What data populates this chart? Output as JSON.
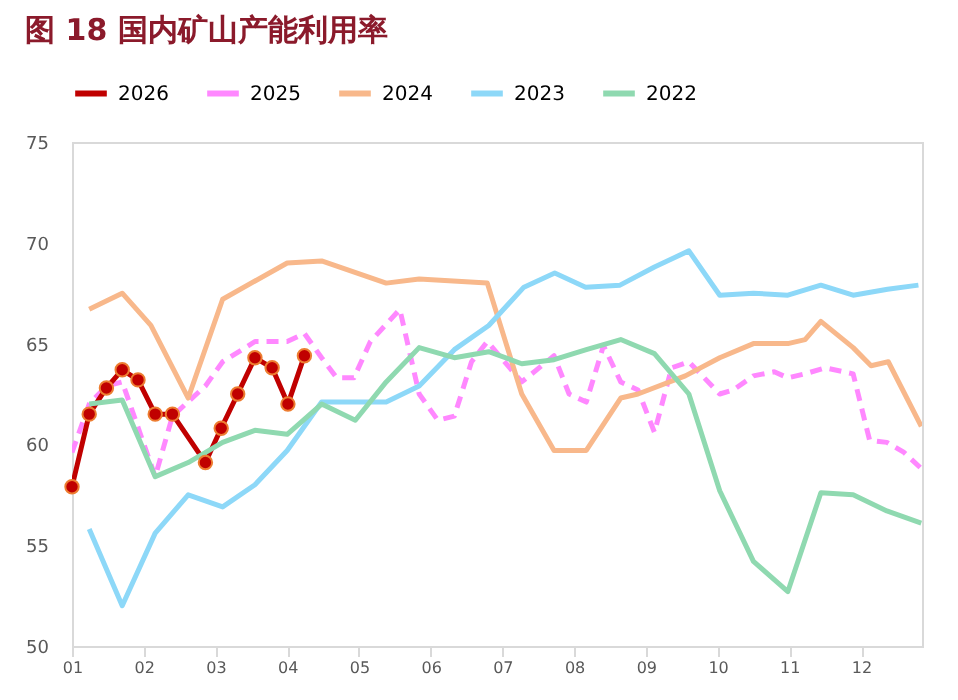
{
  "chart_data": {
    "type": "line",
    "title": "图 18 国内矿山产能利用率",
    "legend": "top",
    "grid": false,
    "xlim": [
      1,
      12.85
    ],
    "xticks": [
      {
        "value": 1,
        "label": "01"
      },
      {
        "value": 2,
        "label": "02"
      },
      {
        "value": 3,
        "label": "03"
      },
      {
        "value": 4,
        "label": "04"
      },
      {
        "value": 5,
        "label": "05"
      },
      {
        "value": 6,
        "label": "06"
      },
      {
        "value": 7,
        "label": "07"
      },
      {
        "value": 8,
        "label": "08"
      },
      {
        "value": 9,
        "label": "09"
      },
      {
        "value": 10,
        "label": "10"
      },
      {
        "value": 11,
        "label": "11"
      },
      {
        "value": 12,
        "label": "12"
      }
    ],
    "ylim": [
      50,
      75
    ],
    "yticks": [
      50,
      55,
      60,
      65,
      70,
      75
    ],
    "series": [
      {
        "name": "2026",
        "color": "#c00000",
        "marker": "circle",
        "line_style": "solid",
        "x": [
          1.0,
          1.24,
          1.48,
          1.7,
          1.92,
          2.16,
          2.4,
          2.86,
          3.08,
          3.31,
          3.55,
          3.79,
          4.01,
          4.24
        ],
        "values": [
          57.9,
          61.5,
          62.8,
          63.7,
          63.2,
          61.5,
          61.5,
          59.1,
          60.8,
          62.5,
          64.3,
          63.8,
          62.0,
          64.4
        ]
      },
      {
        "name": "2025",
        "color": "#ff88ff",
        "marker": "none",
        "line_style": "dashed",
        "x": [
          1.0,
          1.24,
          1.48,
          1.7,
          2.16,
          2.4,
          2.86,
          3.1,
          3.55,
          4.0,
          4.24,
          4.48,
          4.69,
          4.93,
          5.16,
          5.57,
          5.84,
          6.1,
          6.33,
          6.57,
          6.79,
          7.27,
          7.72,
          7.93,
          8.17,
          8.41,
          8.65,
          8.89,
          9.12,
          9.36,
          9.6,
          10.03,
          10.22,
          10.5,
          10.79,
          10.98,
          11.22,
          11.5,
          11.89,
          12.12,
          12.36,
          12.6,
          12.84
        ],
        "values": [
          59.6,
          62.0,
          62.9,
          63.1,
          58.4,
          61.4,
          62.9,
          64.1,
          65.1,
          65.1,
          65.5,
          64.3,
          63.3,
          63.3,
          65.1,
          66.7,
          62.5,
          61.2,
          61.4,
          64.1,
          65.1,
          63.1,
          64.4,
          62.5,
          62.1,
          64.9,
          63.1,
          62.7,
          60.6,
          63.8,
          64.1,
          62.5,
          62.7,
          63.4,
          63.6,
          63.3,
          63.5,
          63.8,
          63.5,
          60.2,
          60.1,
          59.6,
          58.8
        ]
      },
      {
        "name": "2024",
        "color": "#f8b88b",
        "marker": "none",
        "line_style": "solid",
        "x": [
          1.24,
          1.7,
          2.1,
          2.62,
          3.1,
          4.0,
          4.48,
          5.38,
          5.84,
          6.79,
          7.27,
          7.72,
          8.17,
          8.65,
          8.89,
          9.55,
          10.03,
          10.5,
          10.98,
          11.22,
          11.44,
          11.89,
          12.14,
          12.38,
          12.84
        ],
        "values": [
          66.7,
          67.5,
          65.9,
          62.3,
          67.2,
          69.0,
          69.1,
          68.0,
          68.2,
          68.0,
          62.5,
          59.7,
          59.7,
          62.3,
          62.5,
          63.4,
          64.3,
          65.0,
          65.0,
          65.2,
          66.1,
          64.8,
          63.9,
          64.1,
          60.9
        ]
      },
      {
        "name": "2023",
        "color": "#8dd8f8",
        "marker": "none",
        "line_style": "solid",
        "x": [
          1.24,
          1.7,
          2.16,
          2.62,
          3.1,
          3.55,
          4.0,
          4.48,
          4.95,
          5.38,
          5.84,
          6.33,
          6.81,
          7.3,
          7.73,
          8.16,
          8.64,
          9.12,
          9.6,
          10.03,
          10.5,
          10.98,
          11.44,
          11.89,
          12.37,
          12.8
        ],
        "values": [
          55.8,
          52.0,
          55.6,
          57.5,
          56.9,
          58.0,
          59.7,
          62.1,
          62.1,
          62.1,
          62.9,
          64.7,
          65.9,
          67.8,
          68.5,
          67.8,
          67.9,
          68.8,
          69.6,
          67.4,
          67.5,
          67.4,
          67.9,
          67.4,
          67.7,
          67.9
        ]
      },
      {
        "name": "2022",
        "color": "#8fd9b0",
        "marker": "none",
        "line_style": "solid",
        "x": [
          1.24,
          1.7,
          2.16,
          2.62,
          3.1,
          3.55,
          4.0,
          4.48,
          4.95,
          5.38,
          5.84,
          6.33,
          6.81,
          7.27,
          7.72,
          8.17,
          8.65,
          9.12,
          9.6,
          10.03,
          10.5,
          10.98,
          11.44,
          11.89,
          12.36,
          12.84
        ],
        "values": [
          62.0,
          62.2,
          58.4,
          59.1,
          60.1,
          60.7,
          60.5,
          62.0,
          61.2,
          63.1,
          64.8,
          64.3,
          64.6,
          64.0,
          64.2,
          64.7,
          65.2,
          64.5,
          62.5,
          57.7,
          54.2,
          52.7,
          57.6,
          57.5,
          56.7,
          56.1
        ]
      }
    ]
  }
}
